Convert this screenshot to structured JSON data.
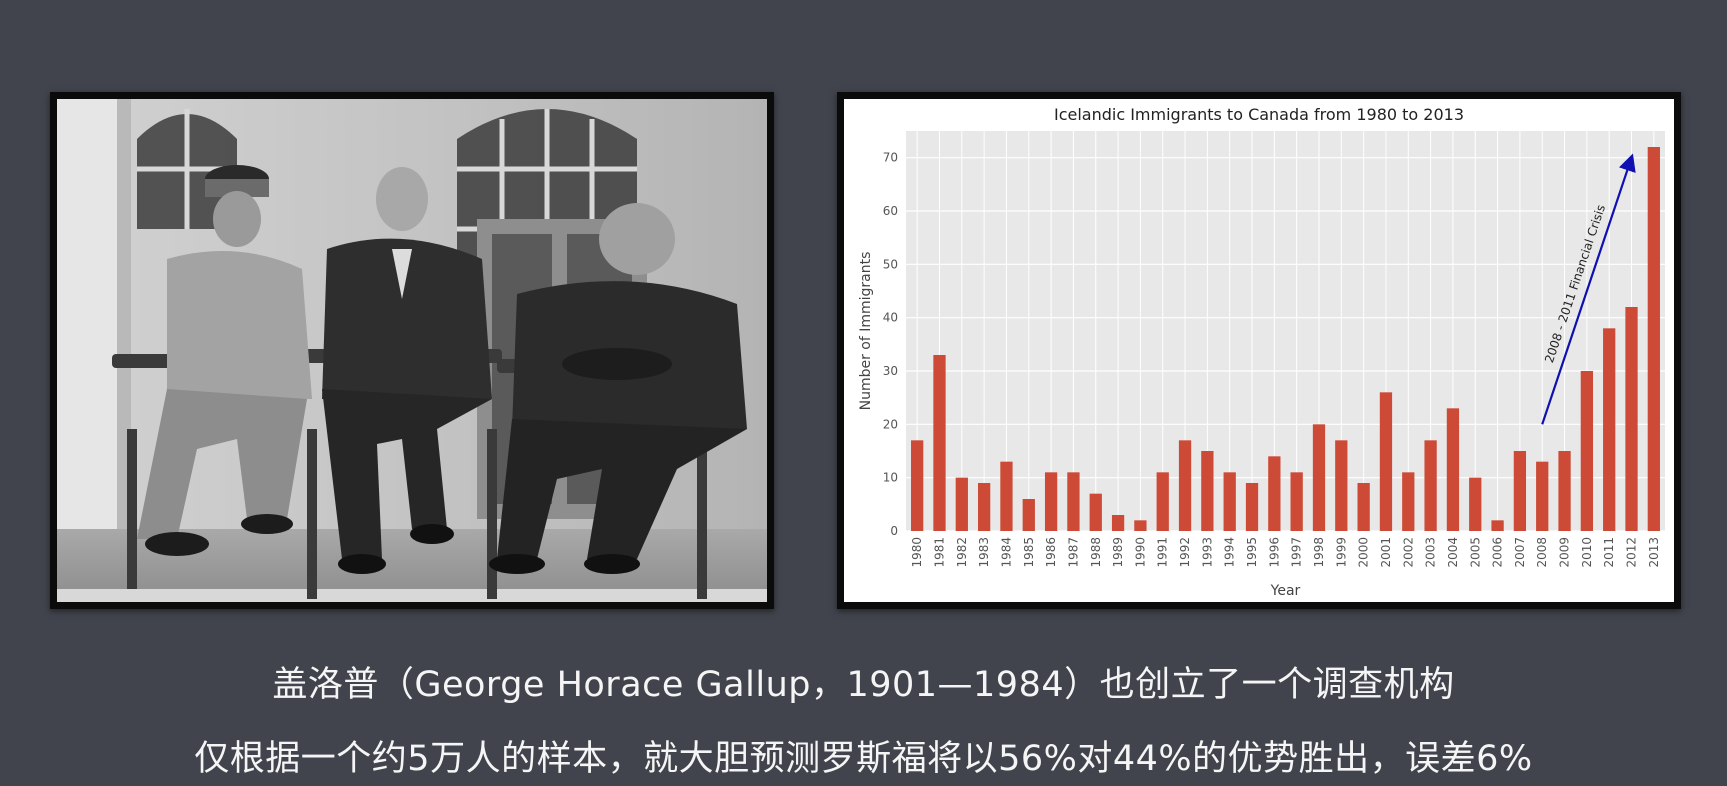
{
  "photo": {
    "subject": "black-and-white photograph of three seated men in front of a portico"
  },
  "chart_data": {
    "type": "bar",
    "title": "Icelandic Immigrants to Canada from 1980 to 2013",
    "xlabel": "Year",
    "ylabel": "Number of Immigrants",
    "categories": [
      "1980",
      "1981",
      "1982",
      "1983",
      "1984",
      "1985",
      "1986",
      "1987",
      "1988",
      "1989",
      "1990",
      "1991",
      "1992",
      "1993",
      "1994",
      "1995",
      "1996",
      "1997",
      "1998",
      "1999",
      "2000",
      "2001",
      "2002",
      "2003",
      "2004",
      "2005",
      "2006",
      "2007",
      "2008",
      "2009",
      "2010",
      "2011",
      "2012",
      "2013"
    ],
    "values": [
      17,
      33,
      10,
      9,
      13,
      6,
      11,
      11,
      7,
      3,
      2,
      11,
      17,
      15,
      11,
      9,
      14,
      11,
      20,
      17,
      9,
      26,
      11,
      17,
      23,
      10,
      2,
      15,
      13,
      15,
      30,
      38,
      42,
      72
    ],
    "ylim": [
      0,
      75
    ],
    "yticks": [
      0,
      10,
      20,
      30,
      40,
      50,
      60,
      70
    ],
    "grid": true,
    "bar_color": "#cc4a36",
    "arrow_color": "#1010b0",
    "annotation": {
      "text": "2008 - 2011 Financial Crisis",
      "arrow_from": {
        "x": "2008",
        "y": 20
      },
      "arrow_to": {
        "x": "2012",
        "y": 70
      }
    }
  },
  "captions": {
    "line1": "盖洛普（George Horace Gallup，1901—1984）也创立了一个调查机构",
    "line2": "仅根据一个约5万人的样本，就大胆预测罗斯福将以56%对44%的优势胜出，误差6%"
  }
}
